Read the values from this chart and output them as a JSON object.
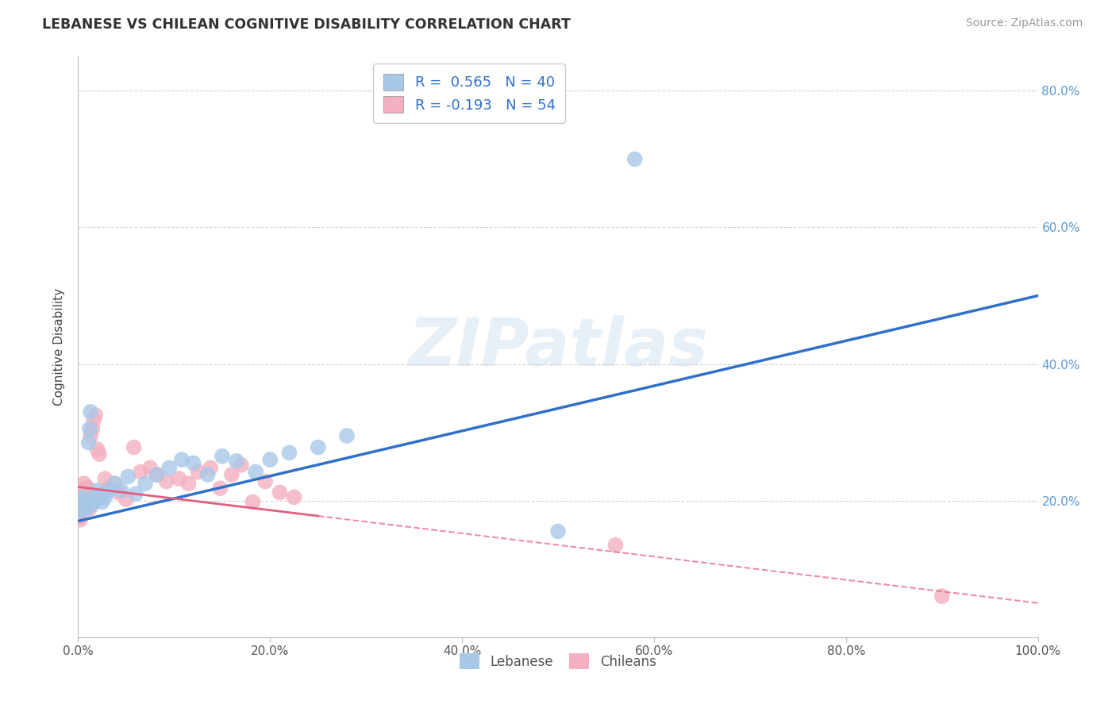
{
  "title": "LEBANESE VS CHILEAN COGNITIVE DISABILITY CORRELATION CHART",
  "source_text": "Source: ZipAtlas.com",
  "ylabel": "Cognitive Disability",
  "watermark": "ZIPatlas",
  "xlim": [
    0.0,
    1.0
  ],
  "ylim": [
    0.0,
    0.85
  ],
  "x_ticks": [
    0.0,
    0.2,
    0.4,
    0.6,
    0.8,
    1.0
  ],
  "x_tick_labels": [
    "0.0%",
    "20.0%",
    "40.0%",
    "60.0%",
    "80.0%",
    "100.0%"
  ],
  "right_y_ticks": [
    0.2,
    0.4,
    0.6,
    0.8
  ],
  "right_y_tick_labels": [
    "20.0%",
    "40.0%",
    "60.0%",
    "80.0%"
  ],
  "lebanese_R": 0.565,
  "lebanese_N": 40,
  "chilean_R": -0.193,
  "chilean_N": 54,
  "blue_color": "#A8C8E8",
  "pink_color": "#F4B0C0",
  "blue_line_color": "#3070C8",
  "pink_line_color": "#E06080",
  "title_color": "#333333",
  "legend_R_color": "#3070C8",
  "bg_color": "#FFFFFF",
  "grid_color": "#CCCCCC",
  "blue_line_start_y": 0.17,
  "blue_line_end_y": 0.5,
  "pink_line_start_y": 0.22,
  "pink_line_end_y": 0.05,
  "lebanese_x": [
    0.001,
    0.002,
    0.003,
    0.003,
    0.004,
    0.005,
    0.006,
    0.007,
    0.008,
    0.009,
    0.01,
    0.011,
    0.012,
    0.013,
    0.015,
    0.017,
    0.02,
    0.022,
    0.025,
    0.028,
    0.032,
    0.038,
    0.045,
    0.052,
    0.06,
    0.07,
    0.082,
    0.095,
    0.108,
    0.12,
    0.135,
    0.15,
    0.165,
    0.185,
    0.2,
    0.22,
    0.25,
    0.28,
    0.5,
    0.58
  ],
  "lebanese_y": [
    0.19,
    0.185,
    0.195,
    0.2,
    0.188,
    0.192,
    0.205,
    0.198,
    0.195,
    0.188,
    0.192,
    0.285,
    0.305,
    0.33,
    0.195,
    0.2,
    0.215,
    0.21,
    0.198,
    0.205,
    0.215,
    0.225,
    0.215,
    0.235,
    0.21,
    0.225,
    0.238,
    0.248,
    0.26,
    0.255,
    0.238,
    0.265,
    0.258,
    0.242,
    0.26,
    0.27,
    0.278,
    0.295,
    0.155,
    0.7
  ],
  "chilean_x": [
    0.001,
    0.001,
    0.002,
    0.002,
    0.003,
    0.003,
    0.003,
    0.004,
    0.004,
    0.005,
    0.005,
    0.006,
    0.006,
    0.006,
    0.007,
    0.007,
    0.008,
    0.008,
    0.009,
    0.009,
    0.01,
    0.01,
    0.011,
    0.012,
    0.013,
    0.015,
    0.016,
    0.018,
    0.02,
    0.022,
    0.025,
    0.028,
    0.032,
    0.038,
    0.042,
    0.05,
    0.058,
    0.065,
    0.075,
    0.082,
    0.092,
    0.105,
    0.115,
    0.125,
    0.138,
    0.148,
    0.16,
    0.17,
    0.182,
    0.195,
    0.21,
    0.225,
    0.56,
    0.9
  ],
  "chilean_y": [
    0.175,
    0.185,
    0.172,
    0.195,
    0.188,
    0.205,
    0.215,
    0.198,
    0.218,
    0.21,
    0.192,
    0.225,
    0.205,
    0.215,
    0.192,
    0.208,
    0.195,
    0.218,
    0.202,
    0.22,
    0.198,
    0.212,
    0.205,
    0.188,
    0.295,
    0.305,
    0.318,
    0.325,
    0.275,
    0.268,
    0.205,
    0.232,
    0.218,
    0.225,
    0.212,
    0.202,
    0.278,
    0.242,
    0.248,
    0.238,
    0.228,
    0.232,
    0.225,
    0.242,
    0.248,
    0.218,
    0.238,
    0.252,
    0.198,
    0.228,
    0.212,
    0.205,
    0.135,
    0.06
  ]
}
